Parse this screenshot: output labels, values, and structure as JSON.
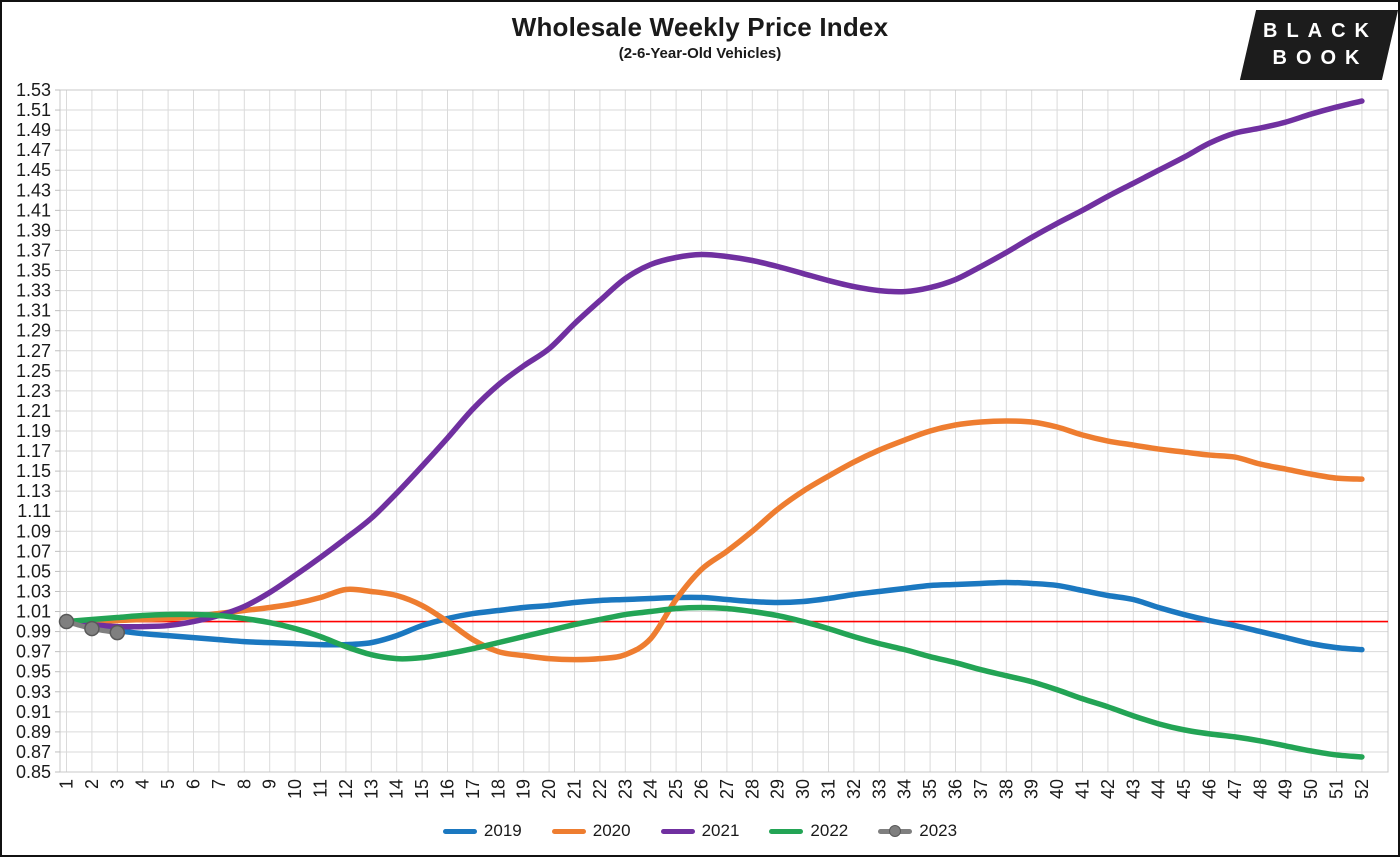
{
  "header": {
    "title": "Wholesale Weekly Price Index",
    "subtitle": "(2-6-Year-Old Vehicles)"
  },
  "logo": {
    "line1": "BLACK",
    "line2": "BOOK"
  },
  "chart_data": {
    "type": "line",
    "title": "Wholesale Weekly Price Index",
    "subtitle": "(2-6-Year-Old Vehicles)",
    "xlabel": "",
    "ylabel": "",
    "ylim": [
      0.85,
      1.53
    ],
    "y_tick_step": 0.02,
    "grid": true,
    "legend_position": "bottom",
    "reference_line": {
      "value": 1.0,
      "color": "#FF0000"
    },
    "y_ticks": [
      1.53,
      1.51,
      1.49,
      1.47,
      1.45,
      1.43,
      1.41,
      1.39,
      1.37,
      1.35,
      1.33,
      1.31,
      1.29,
      1.27,
      1.25,
      1.23,
      1.21,
      1.19,
      1.17,
      1.15,
      1.13,
      1.11,
      1.09,
      1.07,
      1.05,
      1.03,
      1.01,
      0.99,
      0.97,
      0.95,
      0.93,
      0.91,
      0.89,
      0.87,
      0.85
    ],
    "x_ticks": [
      1,
      2,
      3,
      4,
      5,
      6,
      7,
      8,
      9,
      10,
      11,
      12,
      13,
      14,
      15,
      16,
      17,
      18,
      19,
      20,
      21,
      22,
      23,
      24,
      25,
      26,
      27,
      28,
      29,
      30,
      31,
      32,
      33,
      34,
      35,
      36,
      37,
      38,
      39,
      40,
      41,
      42,
      43,
      44,
      45,
      46,
      47,
      48,
      49,
      50,
      51,
      52
    ],
    "series": [
      {
        "name": "2019",
        "color": "#1B78C0",
        "marker": false,
        "values": [
          1.0,
          0.995,
          0.991,
          0.988,
          0.986,
          0.984,
          0.982,
          0.98,
          0.979,
          0.978,
          0.977,
          0.977,
          0.979,
          0.986,
          0.996,
          1.003,
          1.008,
          1.011,
          1.014,
          1.016,
          1.019,
          1.021,
          1.022,
          1.023,
          1.024,
          1.024,
          1.022,
          1.02,
          1.019,
          1.02,
          1.023,
          1.027,
          1.03,
          1.033,
          1.036,
          1.037,
          1.038,
          1.039,
          1.038,
          1.036,
          1.031,
          1.026,
          1.022,
          1.014,
          1.007,
          1.001,
          0.996,
          0.99,
          0.984,
          0.978,
          0.974,
          0.972
        ]
      },
      {
        "name": "2020",
        "color": "#EE7D30",
        "marker": false,
        "values": [
          1.0,
          1.0,
          1.001,
          1.002,
          1.003,
          1.005,
          1.008,
          1.011,
          1.014,
          1.018,
          1.024,
          1.032,
          1.03,
          1.026,
          1.016,
          1.0,
          0.982,
          0.97,
          0.966,
          0.963,
          0.962,
          0.963,
          0.967,
          0.983,
          1.022,
          1.052,
          1.07,
          1.09,
          1.112,
          1.13,
          1.145,
          1.159,
          1.171,
          1.181,
          1.19,
          1.196,
          1.199,
          1.2,
          1.199,
          1.194,
          1.186,
          1.18,
          1.176,
          1.172,
          1.169,
          1.166,
          1.164,
          1.157,
          1.152,
          1.147,
          1.143,
          1.142
        ]
      },
      {
        "name": "2021",
        "color": "#7030A0",
        "marker": false,
        "values": [
          1.0,
          0.997,
          0.995,
          0.995,
          0.996,
          1.0,
          1.006,
          1.015,
          1.029,
          1.046,
          1.064,
          1.083,
          1.103,
          1.128,
          1.155,
          1.183,
          1.212,
          1.236,
          1.255,
          1.272,
          1.297,
          1.32,
          1.342,
          1.356,
          1.363,
          1.366,
          1.364,
          1.36,
          1.354,
          1.347,
          1.34,
          1.334,
          1.33,
          1.329,
          1.333,
          1.341,
          1.354,
          1.368,
          1.383,
          1.397,
          1.41,
          1.424,
          1.437,
          1.45,
          1.463,
          1.477,
          1.487,
          1.492,
          1.498,
          1.506,
          1.513,
          1.519
        ]
      },
      {
        "name": "2022",
        "color": "#23A455",
        "marker": false,
        "values": [
          1.0,
          1.002,
          1.004,
          1.006,
          1.007,
          1.007,
          1.006,
          1.003,
          0.999,
          0.993,
          0.985,
          0.975,
          0.967,
          0.963,
          0.964,
          0.968,
          0.973,
          0.979,
          0.985,
          0.991,
          0.997,
          1.002,
          1.007,
          1.01,
          1.013,
          1.014,
          1.013,
          1.01,
          1.006,
          1.0,
          0.993,
          0.985,
          0.978,
          0.972,
          0.965,
          0.959,
          0.952,
          0.946,
          0.94,
          0.932,
          0.923,
          0.915,
          0.906,
          0.898,
          0.892,
          0.888,
          0.885,
          0.881,
          0.876,
          0.871,
          0.867,
          0.865
        ]
      },
      {
        "name": "2023",
        "color": "#7F7F7F",
        "marker": true,
        "values": [
          1.0,
          0.993,
          0.989
        ]
      }
    ]
  }
}
